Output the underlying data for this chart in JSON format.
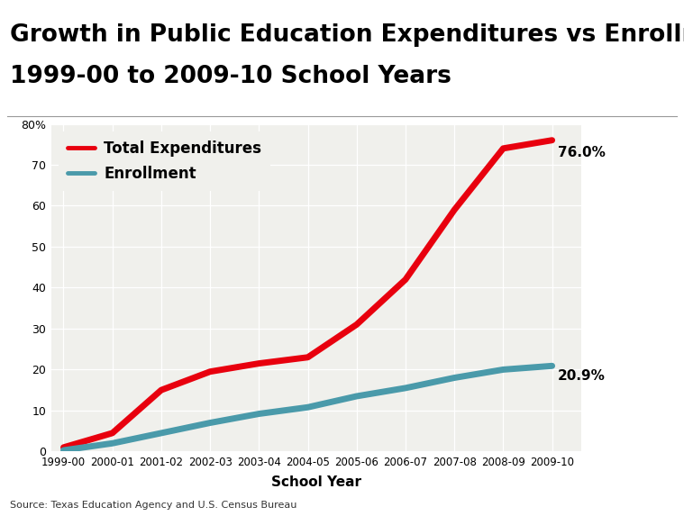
{
  "title_line1": "Growth in Public Education Expenditures vs Enrollment,",
  "title_line2": "1999-00 to 2009-10 School Years",
  "xlabel": "School Year",
  "source": "Source: Texas Education Agency and U.S. Census Bureau",
  "x_labels": [
    "1999-00",
    "2000-01",
    "2001-02",
    "2002-03",
    "2003-04",
    "2004-05",
    "2005-06",
    "2006-07",
    "2007-08",
    "2008-09",
    "2009-10"
  ],
  "expenditures": [
    1.0,
    4.5,
    15.0,
    19.5,
    21.5,
    23.0,
    31.0,
    42.0,
    59.0,
    74.0,
    76.0
  ],
  "enrollment": [
    0.3,
    2.0,
    4.5,
    7.0,
    9.2,
    10.8,
    13.5,
    15.5,
    18.0,
    20.0,
    20.9
  ],
  "expenditure_color": "#e8000e",
  "enrollment_color": "#4a9aaa",
  "expenditure_label": "Total Expenditures",
  "enrollment_label": "Enrollment",
  "expenditure_end_label": "76.0%",
  "enrollment_end_label": "20.9%",
  "ylim": [
    0,
    80
  ],
  "yticks": [
    0,
    10,
    20,
    30,
    40,
    50,
    60,
    70,
    80
  ],
  "background_color": "#ffffff",
  "plot_bg_color": "#f0f0ec",
  "title_fontsize": 19,
  "axis_label_fontsize": 11,
  "legend_fontsize": 12,
  "line_width": 5.0,
  "separator_color": "#999999"
}
